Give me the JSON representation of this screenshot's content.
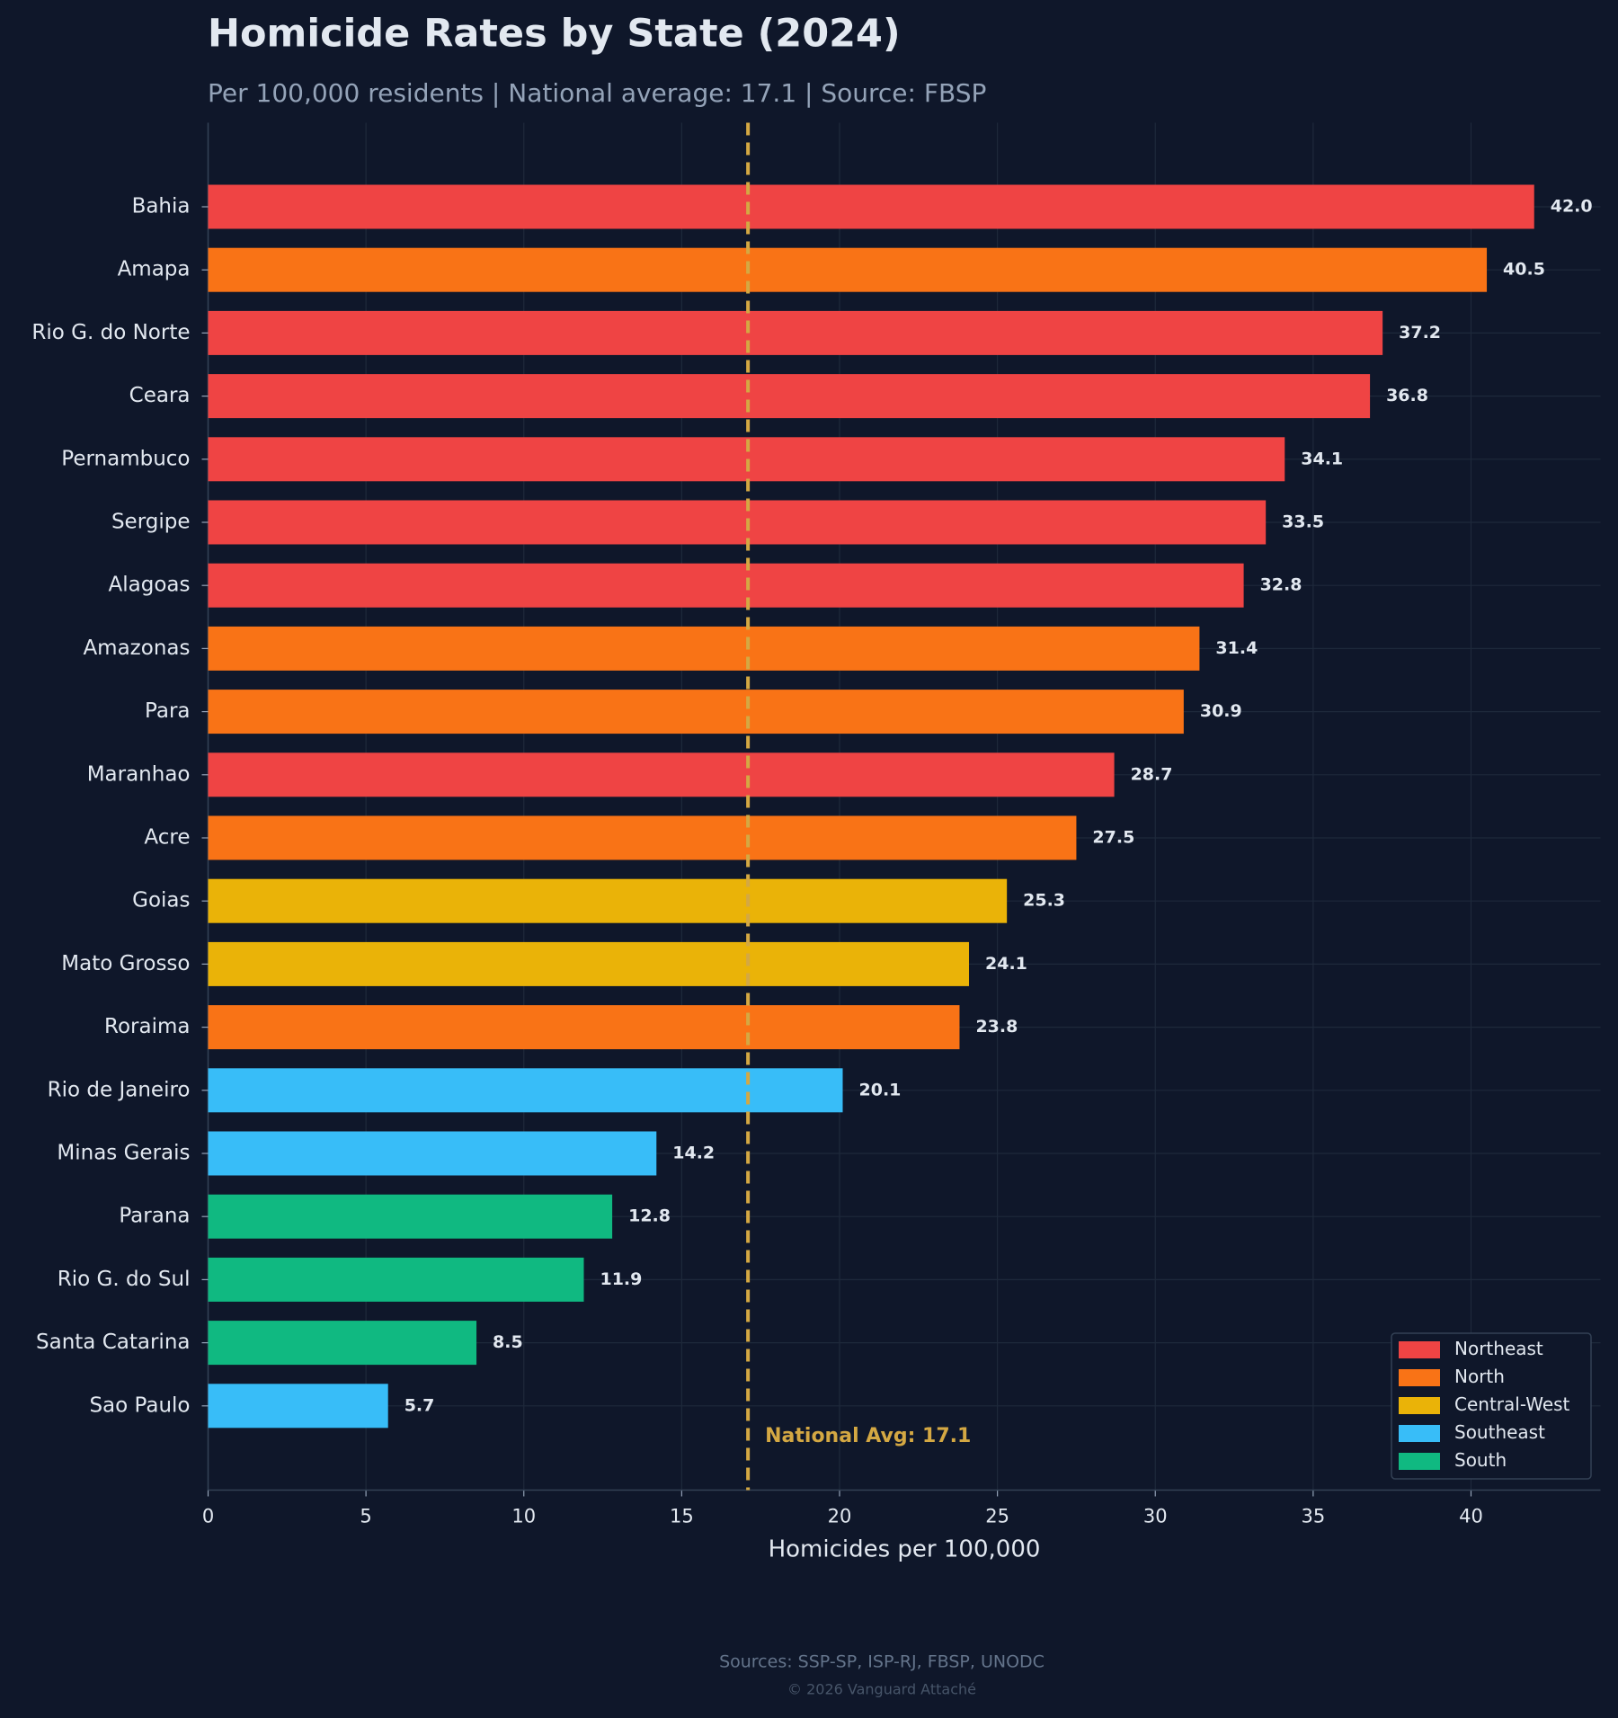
{
  "chart_data": {
    "type": "barh",
    "title": "Homicide Rates by State (2024)",
    "subtitle": "Per 100,000 residents | National average: 17.1 | Source: FBSP",
    "x_label": "Homicides per 100,000",
    "categories": [
      "Bahia",
      "Amapa",
      "Rio G. do Norte",
      "Ceara",
      "Pernambuco",
      "Sergipe",
      "Alagoas",
      "Amazonas",
      "Para",
      "Maranhao",
      "Acre",
      "Goias",
      "Mato Grosso",
      "Roraima",
      "Rio de Janeiro",
      "Minas Gerais",
      "Parana",
      "Rio G. do Sul",
      "Santa Catarina",
      "Sao Paulo"
    ],
    "series": [
      {
        "name": "Northeast",
        "color": "#ef4444",
        "values": [
          42.0,
          null,
          37.2,
          36.8,
          34.1,
          33.5,
          32.8,
          null,
          null,
          28.7,
          null,
          null,
          null,
          null,
          null,
          null,
          null,
          null,
          null,
          null
        ],
        "value_labels": [
          "42.0",
          null,
          "37.2",
          "36.8",
          "34.1",
          "33.5",
          "32.8",
          null,
          null,
          "28.7",
          null,
          null,
          null,
          null,
          null,
          null,
          null,
          null,
          null,
          null
        ]
      },
      {
        "name": "North",
        "color": "#f97316",
        "values": [
          null,
          40.5,
          null,
          null,
          null,
          null,
          null,
          31.4,
          30.9,
          null,
          27.5,
          null,
          null,
          23.8,
          null,
          null,
          null,
          null,
          null,
          null
        ],
        "value_labels": [
          null,
          "40.5",
          null,
          null,
          null,
          null,
          null,
          "31.4",
          "30.9",
          null,
          "27.5",
          null,
          null,
          "23.8",
          null,
          null,
          null,
          null,
          null,
          null
        ]
      },
      {
        "name": "Central-West",
        "color": "#eab308",
        "values": [
          null,
          null,
          null,
          null,
          null,
          null,
          null,
          null,
          null,
          null,
          null,
          25.3,
          24.1,
          null,
          null,
          null,
          null,
          null,
          null,
          null
        ],
        "value_labels": [
          null,
          null,
          null,
          null,
          null,
          null,
          null,
          null,
          null,
          null,
          null,
          "25.3",
          "24.1",
          null,
          null,
          null,
          null,
          null,
          null,
          null
        ]
      },
      {
        "name": "Southeast",
        "color": "#38bdf8",
        "values": [
          null,
          null,
          null,
          null,
          null,
          null,
          null,
          null,
          null,
          null,
          null,
          null,
          null,
          null,
          20.1,
          14.2,
          null,
          null,
          null,
          5.7
        ],
        "value_labels": [
          null,
          null,
          null,
          null,
          null,
          null,
          null,
          null,
          null,
          null,
          null,
          null,
          null,
          null,
          "20.1",
          "14.2",
          null,
          null,
          null,
          "5.7"
        ]
      },
      {
        "name": "South",
        "color": "#10b981",
        "values": [
          null,
          null,
          null,
          null,
          null,
          null,
          null,
          null,
          null,
          null,
          null,
          null,
          null,
          null,
          null,
          null,
          12.8,
          11.9,
          8.5,
          null
        ],
        "value_labels": [
          null,
          null,
          null,
          null,
          null,
          null,
          null,
          null,
          null,
          null,
          null,
          null,
          null,
          null,
          null,
          null,
          "12.8",
          "11.9",
          "8.5",
          null
        ]
      }
    ],
    "reference_line": {
      "value": 17.1,
      "label": "National Avg: 17.1",
      "color": "#d4a843"
    },
    "xlim": [
      0,
      44.1
    ],
    "xticks": [
      0,
      5,
      10,
      15,
      20,
      25,
      30,
      35,
      40
    ],
    "grid": true,
    "legend": "lower right"
  },
  "footer": {
    "sources": "Sources: SSP-SP, ISP-RJ, FBSP, UNODC",
    "copyright": "© 2026 Vanguard Attaché"
  }
}
